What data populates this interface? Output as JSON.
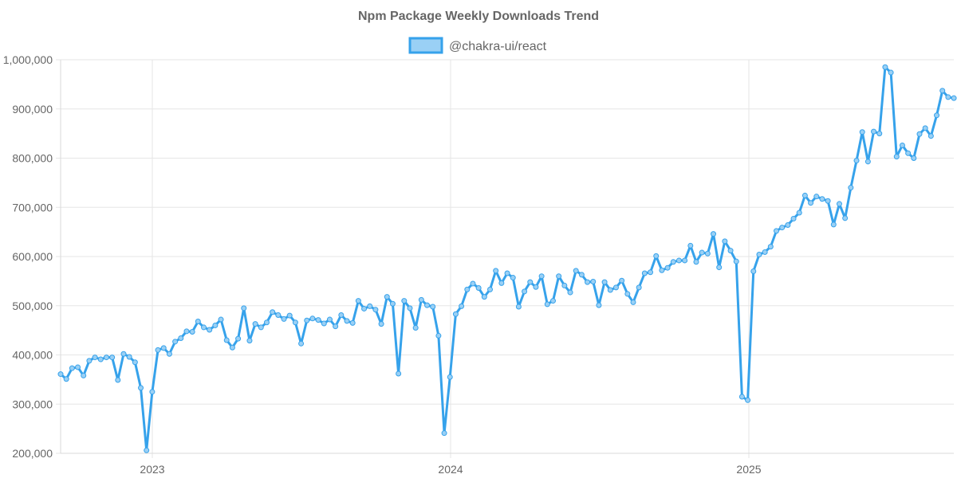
{
  "chart_data": {
    "type": "line",
    "title": "Npm Package Weekly Downloads Trend",
    "xlabel": "",
    "ylabel": "",
    "ylim": [
      200000,
      1000000
    ],
    "y_ticks": [
      200000,
      300000,
      400000,
      500000,
      600000,
      700000,
      800000,
      900000,
      1000000
    ],
    "y_tick_labels": [
      "200,000",
      "300,000",
      "400,000",
      "500,000",
      "600,000",
      "700,000",
      "800,000",
      "900,000",
      "1,000,000"
    ],
    "x_ticks": [
      "2023",
      "2024",
      "2025"
    ],
    "legend_position": "top",
    "grid": true,
    "colors": {
      "line": "#36a2eb",
      "fill": "#9ad0f5"
    },
    "series": [
      {
        "name": "@chakra-ui/react",
        "values": [
          361000,
          351000,
          373000,
          375000,
          358000,
          388000,
          395000,
          391000,
          395000,
          395000,
          349000,
          402000,
          396000,
          385000,
          333000,
          206000,
          325000,
          410000,
          414000,
          402000,
          427000,
          434000,
          448000,
          447000,
          468000,
          456000,
          451000,
          460000,
          472000,
          430000,
          415000,
          433000,
          495000,
          429000,
          463000,
          456000,
          466000,
          487000,
          481000,
          473000,
          480000,
          466000,
          423000,
          470000,
          474000,
          471000,
          464000,
          472000,
          458000,
          481000,
          469000,
          465000,
          510000,
          494000,
          499000,
          492000,
          463000,
          518000,
          504000,
          362000,
          510000,
          495000,
          455000,
          512000,
          501000,
          498000,
          439000,
          241000,
          355000,
          483000,
          499000,
          533000,
          545000,
          536000,
          518000,
          533000,
          571000,
          546000,
          566000,
          557000,
          498000,
          529000,
          548000,
          538000,
          560000,
          503000,
          510000,
          560000,
          541000,
          527000,
          571000,
          563000,
          548000,
          549000,
          501000,
          548000,
          532000,
          537000,
          551000,
          524000,
          507000,
          537000,
          566000,
          568000,
          601000,
          572000,
          577000,
          589000,
          592000,
          592000,
          622000,
          589000,
          608000,
          606000,
          646000,
          578000,
          631000,
          612000,
          590000,
          315000,
          308000,
          570000,
          604000,
          609000,
          620000,
          652000,
          659000,
          664000,
          677000,
          689000,
          724000,
          709000,
          722000,
          717000,
          713000,
          665000,
          707000,
          678000,
          740000,
          795000,
          853000,
          793000,
          854000,
          850000,
          985000,
          974000,
          803000,
          826000,
          810000,
          800000,
          849000,
          861000,
          845000,
          887000,
          937000,
          924000,
          922000
        ]
      }
    ]
  }
}
